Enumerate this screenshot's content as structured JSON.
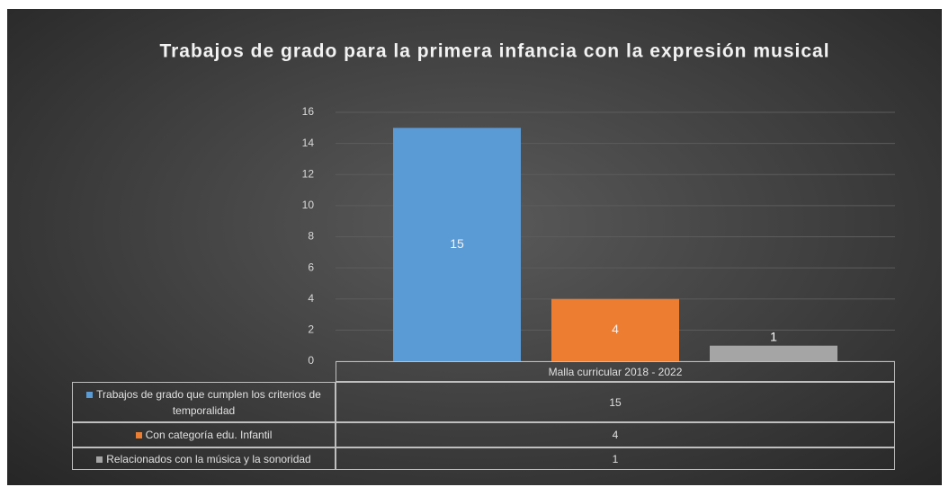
{
  "chart_data": {
    "type": "bar",
    "title": "Trabajos de grado para la primera infancia con la expresión musical",
    "categories": [
      "Malla curricular 2018 - 2022"
    ],
    "series": [
      {
        "name": "Trabajos de grado que cumplen los criterios de temporalidad",
        "color": "#5b9bd5",
        "values": [
          15
        ]
      },
      {
        "name": "Con categoría edu. Infantil",
        "color": "#ed7d31",
        "values": [
          4
        ]
      },
      {
        "name": "Relacionados con la música y la sonoridad",
        "color": "#a5a5a5",
        "values": [
          1
        ]
      }
    ],
    "ylim": [
      0,
      16
    ],
    "yticks": [
      0,
      2,
      4,
      6,
      8,
      10,
      12,
      14,
      16
    ],
    "grid": true
  }
}
